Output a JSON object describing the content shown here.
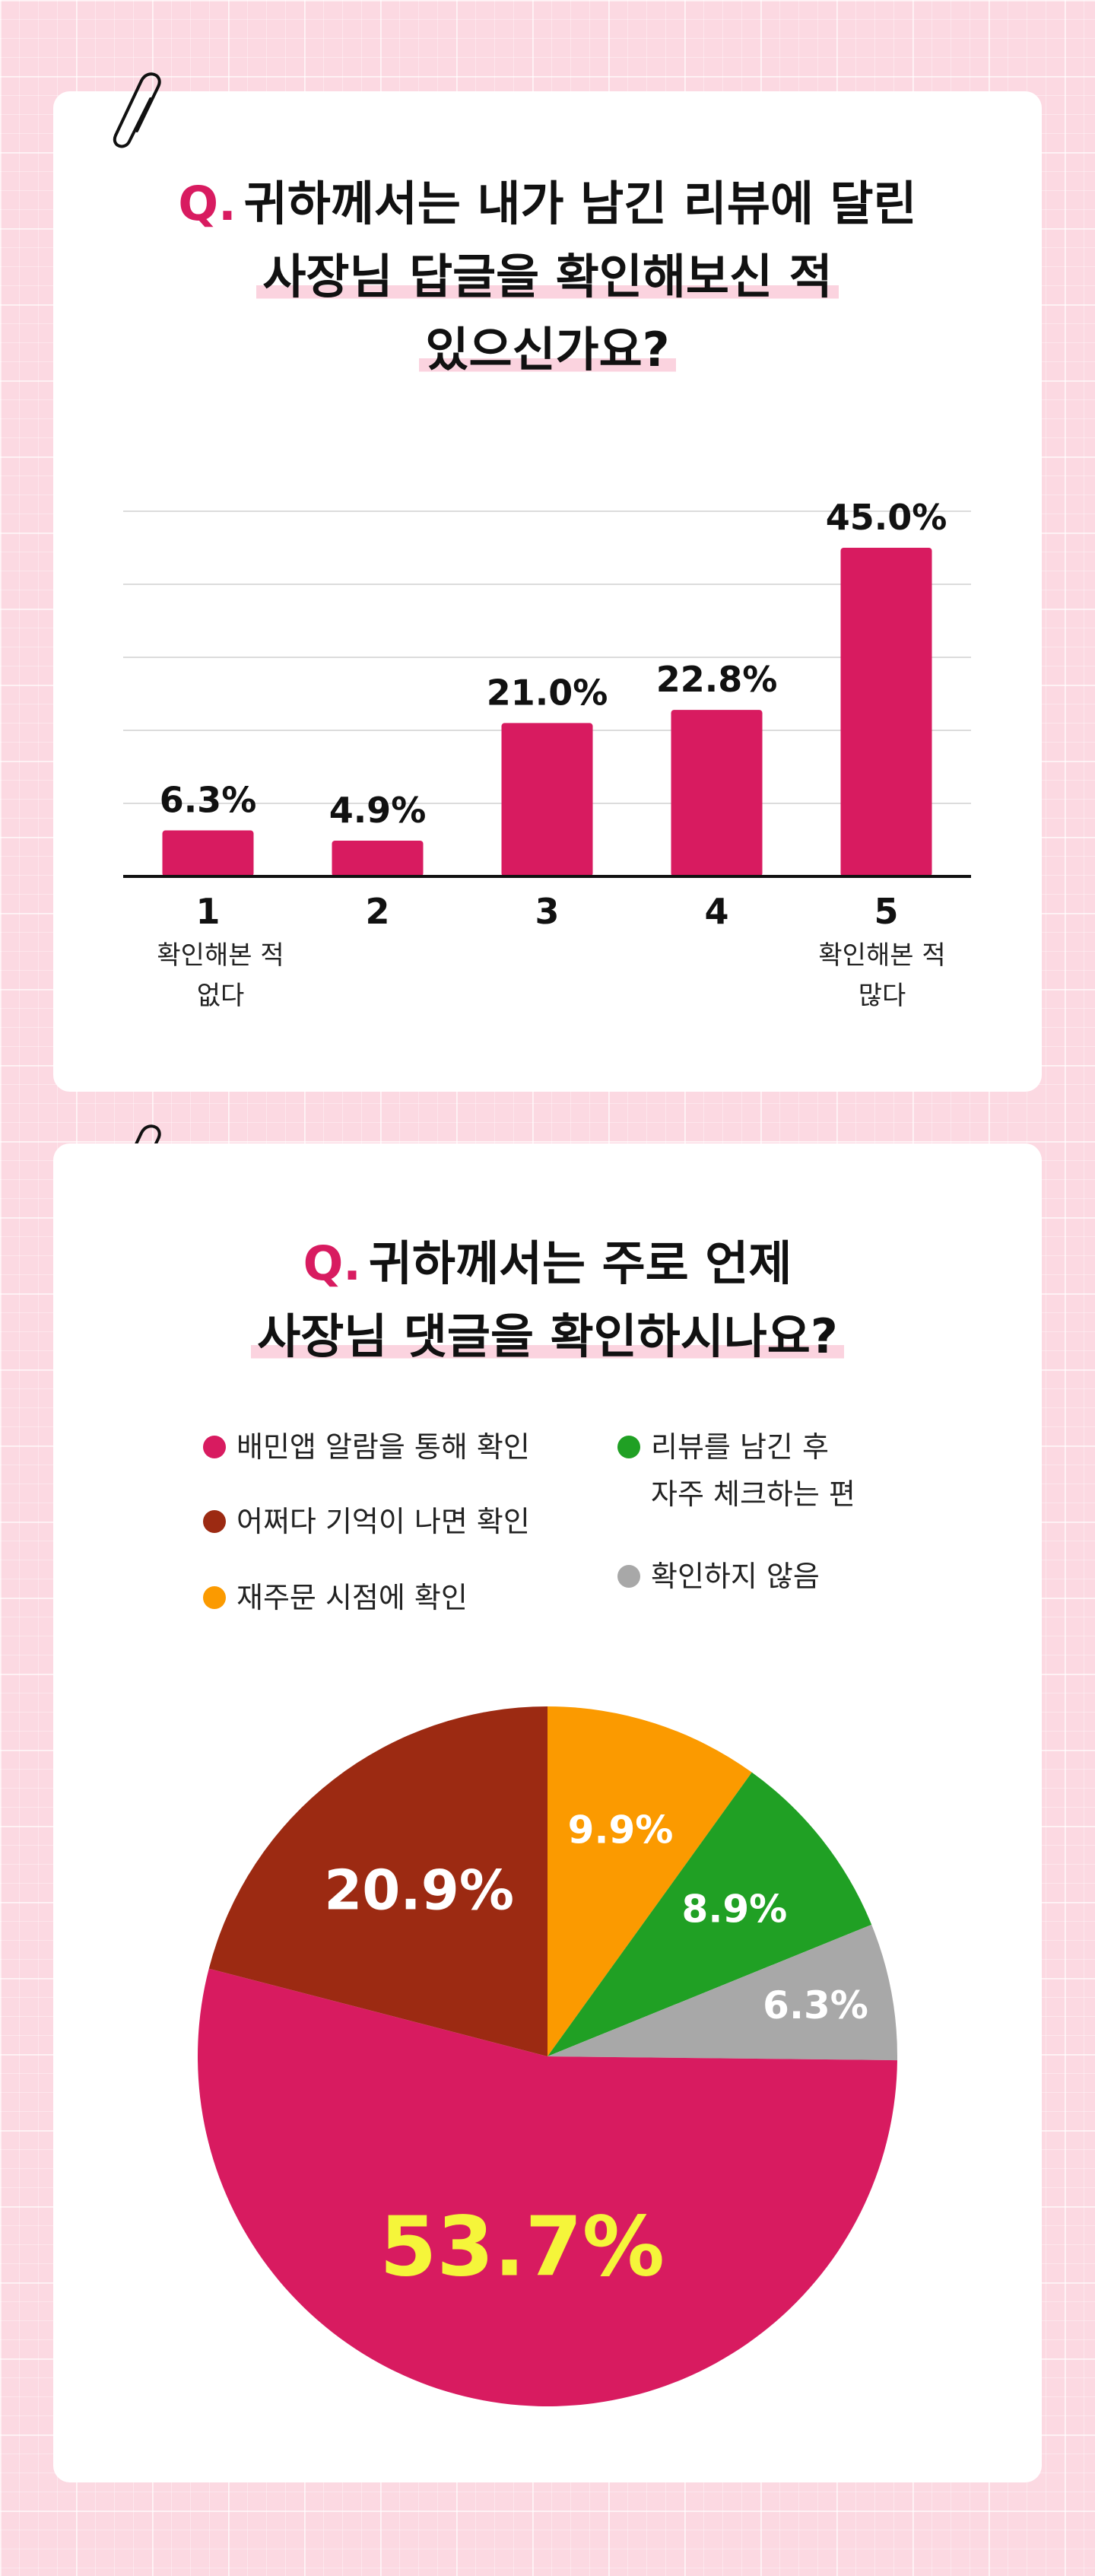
{
  "bar_section": {
    "q_mark": "Q.",
    "title_line1": "귀하께서는 내가 남긴 리뷰에 달린",
    "title_line2": "사장님 답글을 확인해보신 적",
    "title_line3": "있으신가요?",
    "scale_label_low_1": "확인해본 적",
    "scale_label_low_2": "없다",
    "scale_label_high_1": "확인해본 적",
    "scale_label_high_2": "많다"
  },
  "pie_section": {
    "q_mark": "Q.",
    "title_line1": "귀하께서는 주로 언제",
    "title_line2": "사장님 댓글을 확인하시나요?"
  },
  "colors": {
    "accent": "#d81b60",
    "bar": "#d81b60",
    "highlight_text": "#f5f53a",
    "card": "#ffffff",
    "background": "#fcd9e2"
  },
  "chart_data": [
    {
      "type": "bar",
      "categories": [
        "1",
        "2",
        "3",
        "4",
        "5"
      ],
      "values": [
        6.3,
        4.9,
        21.0,
        22.8,
        45.0
      ],
      "value_labels": [
        "6.3%",
        "4.9%",
        "21.0%",
        "22.8%",
        "45.0%"
      ],
      "ylim": [
        0,
        50
      ],
      "grid": true,
      "color": "#d81b60"
    },
    {
      "type": "pie",
      "slices": [
        {
          "label": "배민앱 알람을 통해 확인",
          "value": 53.7,
          "display": "53.7%",
          "color": "#d81b60",
          "text_color": "#f5f53a"
        },
        {
          "label": "어쩌다 기억이 나면 확인",
          "value": 20.9,
          "display": "20.9%",
          "color": "#9c2a12",
          "text_color": "#ffffff"
        },
        {
          "label": "재주문 시점에 확인",
          "value": 9.9,
          "display": "9.9%",
          "color": "#fb9a00",
          "text_color": "#ffffff"
        },
        {
          "label": "리뷰를 남긴 후 자주 체크하는 편",
          "label_line1": "리뷰를 남긴 후",
          "label_line2": "자주 체크하는 편",
          "value": 8.9,
          "display": "8.9%",
          "color": "#20a024",
          "text_color": "#ffffff"
        },
        {
          "label": "확인하지 않음",
          "value": 6.3,
          "display": "6.3%",
          "color": "#a8a8a8",
          "text_color": "#ffffff"
        }
      ],
      "legend_position": "top"
    }
  ]
}
